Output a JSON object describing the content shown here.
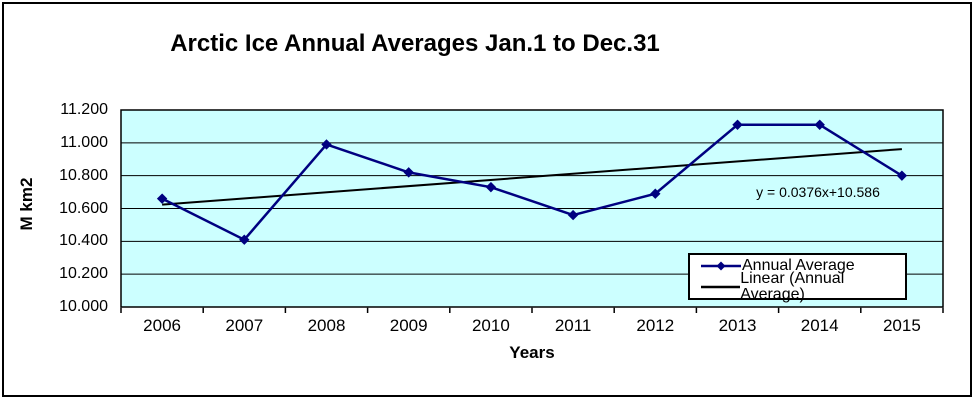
{
  "chart_data": {
    "type": "line",
    "title": "Arctic Ice Annual Averages Jan.1 to Dec.31",
    "xlabel": "Years",
    "ylabel": "M km2",
    "categories": [
      "2006",
      "2007",
      "2008",
      "2009",
      "2010",
      "2011",
      "2012",
      "2013",
      "2014",
      "2015"
    ],
    "series": [
      {
        "name": "Annual Average",
        "color": "#000080",
        "marker": "diamond",
        "values": [
          10.66,
          10.41,
          10.99,
          10.82,
          10.73,
          10.56,
          10.69,
          11.11,
          11.11,
          10.8
        ]
      },
      {
        "name": "Linear (Annual Average)",
        "color": "#000000",
        "type": "linear-trendline",
        "slope": 0.0376,
        "intercept": 10.586
      }
    ],
    "trendline_equation": "y = 0.0376x+10.586",
    "ylim": [
      10.0,
      11.2
    ],
    "ytick_step": 0.2,
    "ytick_labels": [
      "11.200",
      "11.000",
      "10.800",
      "10.600",
      "10.400",
      "10.200",
      "10.000"
    ],
    "grid": true,
    "legend": {
      "position": "inside-bottom-right",
      "entries": [
        {
          "label": "Annual Average",
          "marker": "line-with-diamond",
          "color": "#000080"
        },
        {
          "label": "Linear (Annual Average)",
          "marker": "line",
          "color": "#000000"
        }
      ]
    },
    "colors": {
      "background": "#FFFFFF",
      "plot_bg": "#CCFFFF",
      "series_line": "#000080",
      "trendline": "#000000",
      "gridline": "#000000",
      "text": "#000000",
      "border": "#000000"
    }
  }
}
